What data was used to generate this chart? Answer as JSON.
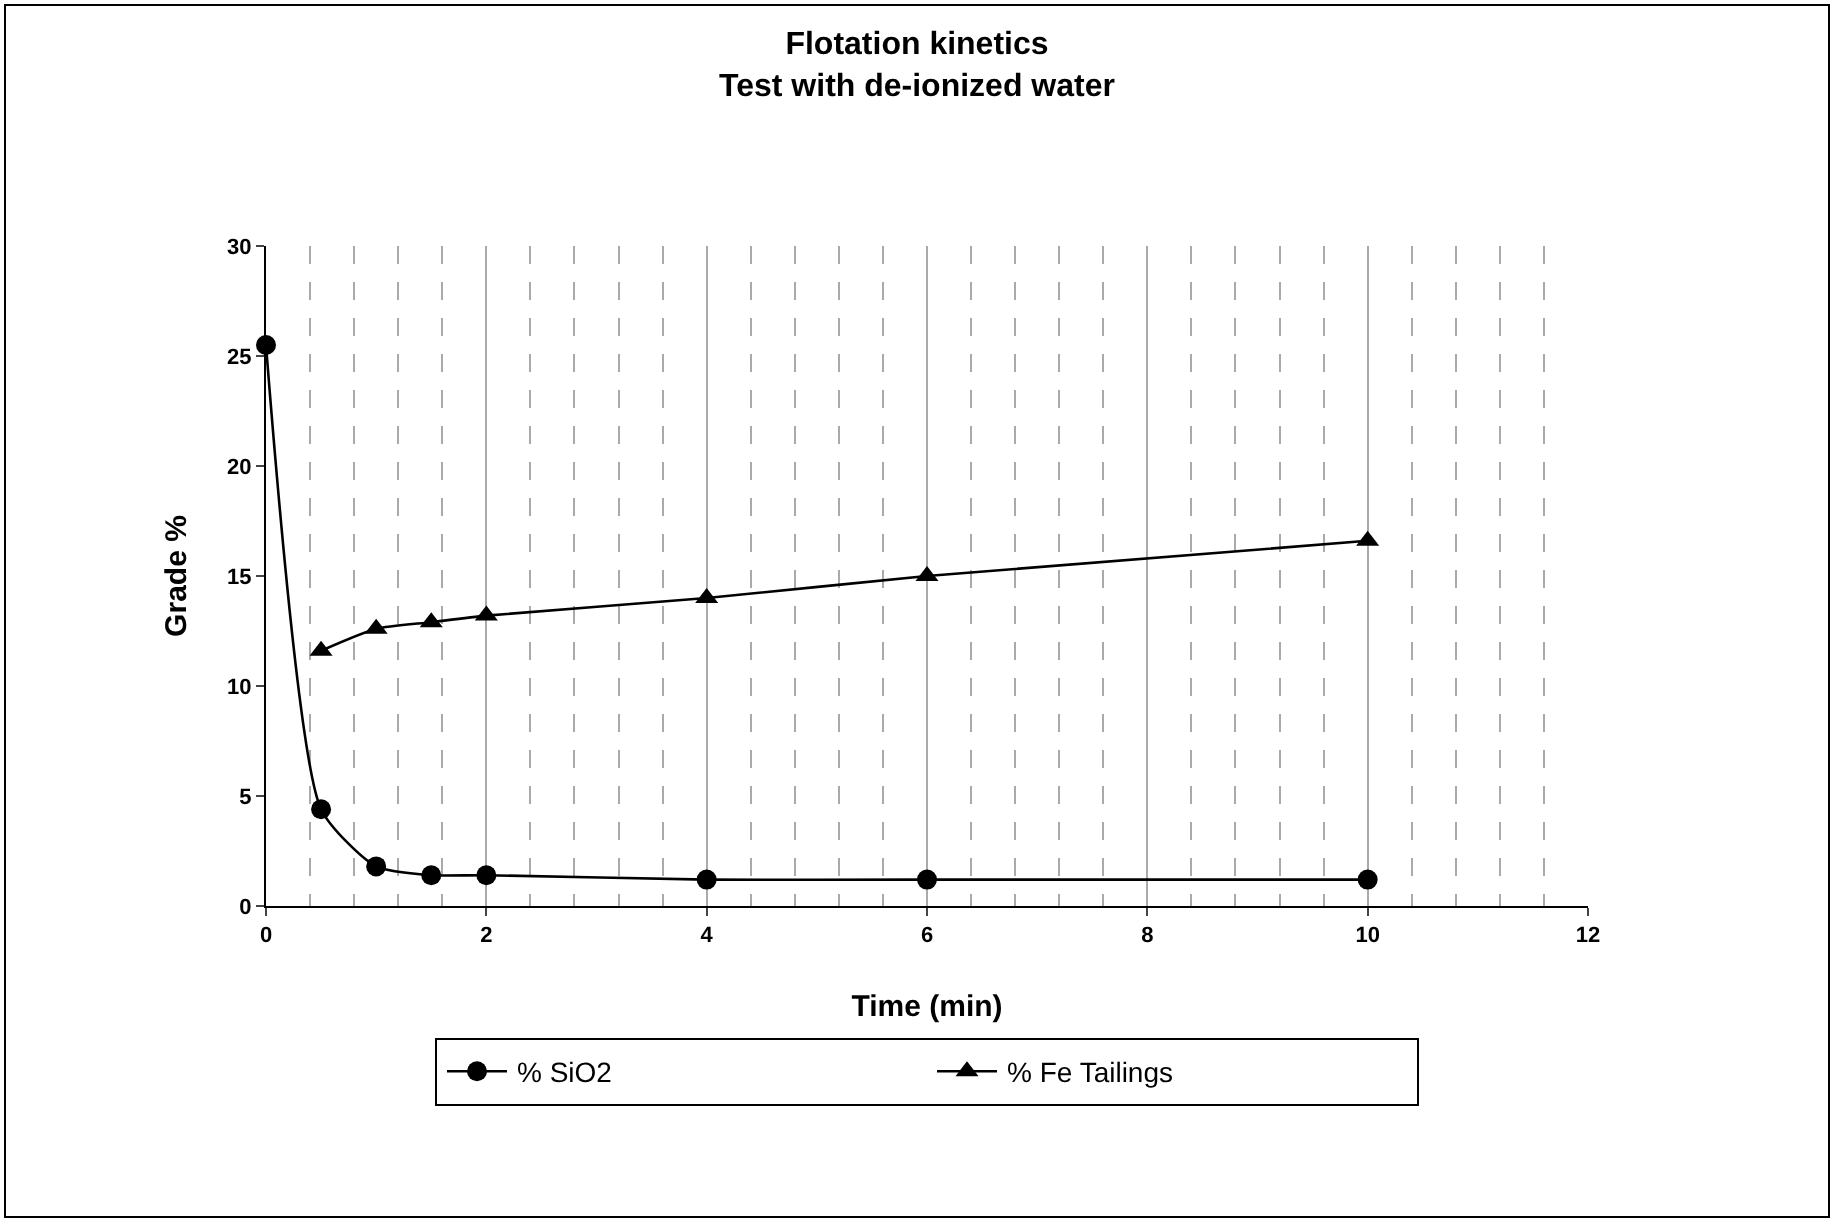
{
  "chart_data": {
    "type": "line",
    "title": "Flotation kinetics",
    "subtitle": "Test with de-ionized water",
    "xlabel": "Time (min)",
    "ylabel": "Grade %",
    "series": [
      {
        "name": "% SiO2",
        "color": "#000000",
        "marker": "circle",
        "x": [
          0,
          0.5,
          1,
          1.5,
          2,
          4,
          6,
          10
        ],
        "values": [
          25.5,
          4.4,
          1.8,
          1.4,
          1.4,
          1.2,
          1.2,
          1.2
        ]
      },
      {
        "name": "% Fe Tailings",
        "color": "#000000",
        "marker": "triangle",
        "x": [
          0.5,
          1,
          1.5,
          2,
          4,
          6,
          10
        ],
        "values": [
          11.6,
          12.6,
          12.9,
          13.2,
          14.0,
          15.0,
          16.6
        ]
      }
    ],
    "xlim": [
      0,
      12
    ],
    "xticks": [
      0,
      2,
      4,
      6,
      8,
      10,
      12
    ],
    "ylim": [
      0,
      30
    ],
    "yticks": [
      0,
      5,
      10,
      15,
      20,
      25,
      30
    ],
    "grid": "x",
    "legend": "bottom"
  }
}
